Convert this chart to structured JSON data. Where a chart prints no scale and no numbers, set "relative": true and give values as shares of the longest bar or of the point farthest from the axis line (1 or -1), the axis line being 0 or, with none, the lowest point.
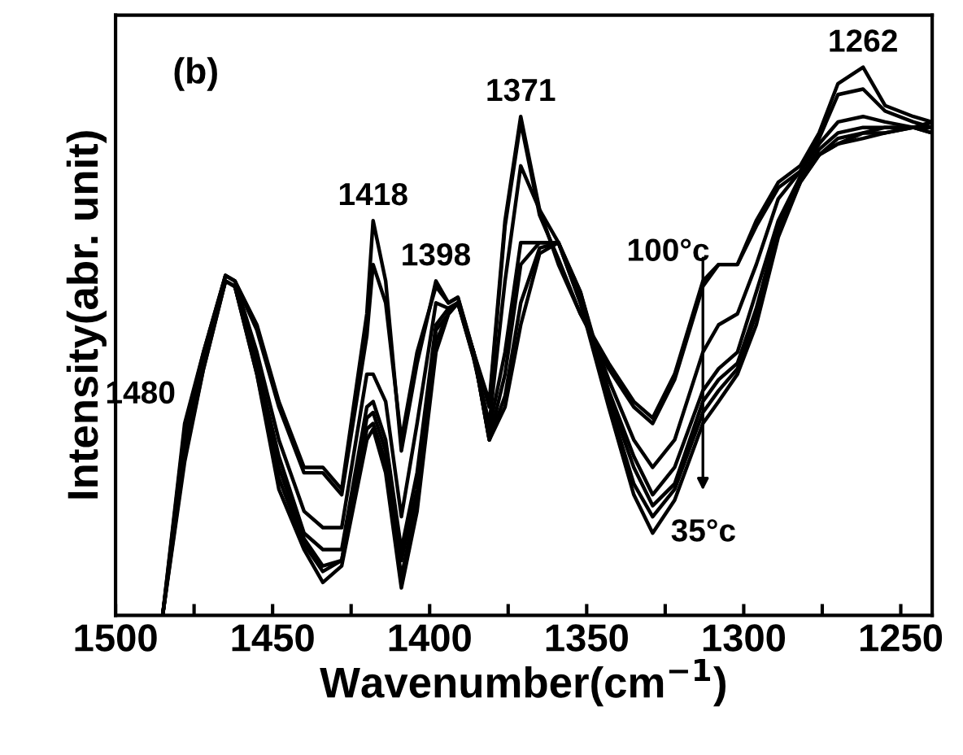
{
  "chart_data": {
    "type": "line",
    "relative": true,
    "xlabel": "Wavenumber(cm$^{−1}$)",
    "ylabel": "Intensity(abr. unit)",
    "xlim": [
      1500,
      1240
    ],
    "xticks": [
      1500,
      {
        "value": 1475,
        "label": null
      },
      1450,
      {
        "value": 1425,
        "label": null
      },
      1400,
      {
        "value": 1375,
        "label": null
      },
      1350,
      {
        "value": 1325,
        "label": null
      },
      1300,
      {
        "value": 1275,
        "label": null
      },
      1250
    ],
    "tick_labels": "x",
    "grid": false,
    "legend": false,
    "marker": "none",
    "line_style": "solid",
    "x": [
      1485,
      1478,
      1472,
      1465,
      1462,
      1455,
      1448,
      1440,
      1434,
      1428,
      1420,
      1418,
      1414,
      1409,
      1404,
      1398,
      1394,
      1391,
      1386,
      1381,
      1376,
      1371,
      1365,
      1359,
      1352,
      1343,
      1335,
      1329,
      1322,
      1313,
      1308,
      1302,
      1296,
      1289,
      1282,
      1276,
      1270,
      1262,
      1255,
      1246,
      1240
    ],
    "series": [
      {
        "color": "#000000",
        "values": [
          0,
          0.35,
          0.48,
          0.62,
          0.61,
          0.53,
          0.39,
          0.27,
          0.27,
          0.23,
          0.55,
          0.72,
          0.61,
          0.3,
          0.46,
          0.61,
          0.57,
          0.58,
          0.48,
          0.39,
          0.72,
          0.91,
          0.74,
          0.64,
          0.55,
          0.46,
          0.39,
          0.36,
          0.44,
          0.61,
          0.64,
          0.64,
          0.72,
          0.79,
          0.82,
          0.88,
          0.97,
          1.0,
          0.93,
          0.91,
          0.9
        ]
      },
      {
        "color": "#000000",
        "values": [
          0,
          0.34,
          0.48,
          0.62,
          0.61,
          0.52,
          0.38,
          0.26,
          0.26,
          0.22,
          0.51,
          0.64,
          0.57,
          0.32,
          0.48,
          0.6,
          0.57,
          0.58,
          0.48,
          0.38,
          0.71,
          0.9,
          0.73,
          0.65,
          0.55,
          0.45,
          0.38,
          0.35,
          0.43,
          0.6,
          0.64,
          0.64,
          0.71,
          0.78,
          0.81,
          0.87,
          0.95,
          0.96,
          0.92,
          0.9,
          0.89
        ]
      },
      {
        "color": "#000000",
        "values": [
          0,
          0.32,
          0.47,
          0.62,
          0.61,
          0.48,
          0.32,
          0.19,
          0.16,
          0.16,
          0.44,
          0.44,
          0.39,
          0.18,
          0.35,
          0.57,
          0.56,
          0.57,
          0.47,
          0.35,
          0.61,
          0.82,
          0.74,
          0.68,
          0.57,
          0.43,
          0.32,
          0.27,
          0.32,
          0.48,
          0.53,
          0.55,
          0.64,
          0.76,
          0.81,
          0.86,
          0.9,
          0.91,
          0.9,
          0.89,
          0.89
        ]
      },
      {
        "color": "#000000",
        "values": [
          0,
          0.31,
          0.47,
          0.61,
          0.6,
          0.46,
          0.29,
          0.15,
          0.12,
          0.12,
          0.38,
          0.39,
          0.32,
          0.12,
          0.26,
          0.53,
          0.56,
          0.57,
          0.47,
          0.34,
          0.48,
          0.68,
          0.68,
          0.68,
          0.59,
          0.41,
          0.29,
          0.22,
          0.27,
          0.41,
          0.45,
          0.48,
          0.59,
          0.72,
          0.8,
          0.85,
          0.88,
          0.89,
          0.89,
          0.89,
          0.88
        ]
      },
      {
        "color": "#000000",
        "values": [
          0,
          0.3,
          0.46,
          0.61,
          0.6,
          0.45,
          0.27,
          0.14,
          0.09,
          0.1,
          0.36,
          0.37,
          0.3,
          0.1,
          0.23,
          0.52,
          0.55,
          0.57,
          0.48,
          0.32,
          0.44,
          0.64,
          0.68,
          0.68,
          0.59,
          0.4,
          0.27,
          0.2,
          0.24,
          0.39,
          0.43,
          0.46,
          0.56,
          0.71,
          0.8,
          0.84,
          0.87,
          0.88,
          0.89,
          0.89,
          0.88
        ]
      },
      {
        "color": "#000000",
        "values": [
          0,
          0.29,
          0.45,
          0.61,
          0.6,
          0.44,
          0.25,
          0.13,
          0.08,
          0.1,
          0.34,
          0.35,
          0.28,
          0.07,
          0.21,
          0.5,
          0.55,
          0.57,
          0.48,
          0.32,
          0.4,
          0.57,
          0.67,
          0.68,
          0.58,
          0.39,
          0.24,
          0.18,
          0.23,
          0.37,
          0.41,
          0.45,
          0.55,
          0.7,
          0.79,
          0.84,
          0.86,
          0.88,
          0.88,
          0.89,
          0.89
        ]
      },
      {
        "color": "#000000",
        "values": [
          0,
          0.28,
          0.45,
          0.61,
          0.6,
          0.44,
          0.23,
          0.12,
          0.06,
          0.09,
          0.32,
          0.34,
          0.26,
          0.05,
          0.19,
          0.48,
          0.55,
          0.57,
          0.48,
          0.32,
          0.38,
          0.53,
          0.66,
          0.68,
          0.57,
          0.38,
          0.22,
          0.15,
          0.21,
          0.35,
          0.39,
          0.44,
          0.53,
          0.69,
          0.79,
          0.84,
          0.86,
          0.87,
          0.88,
          0.89,
          0.9
        ]
      }
    ],
    "annotations": [
      "(b)",
      {
        "text": "1480",
        "x": 1478,
        "y": 0.35
      },
      {
        "text": "1418",
        "x": 1418,
        "y": 0.72
      },
      {
        "text": "1398",
        "x": 1398,
        "y": 0.61
      },
      {
        "text": "1371",
        "x": 1371,
        "y": 0.91
      },
      {
        "text": "1262",
        "x": 1262,
        "y": 1.0
      },
      {
        "text": "100°c",
        "x": 1313,
        "y": 0.61
      },
      {
        "text": "35°c",
        "x": 1329,
        "y": 0.15
      }
    ]
  }
}
